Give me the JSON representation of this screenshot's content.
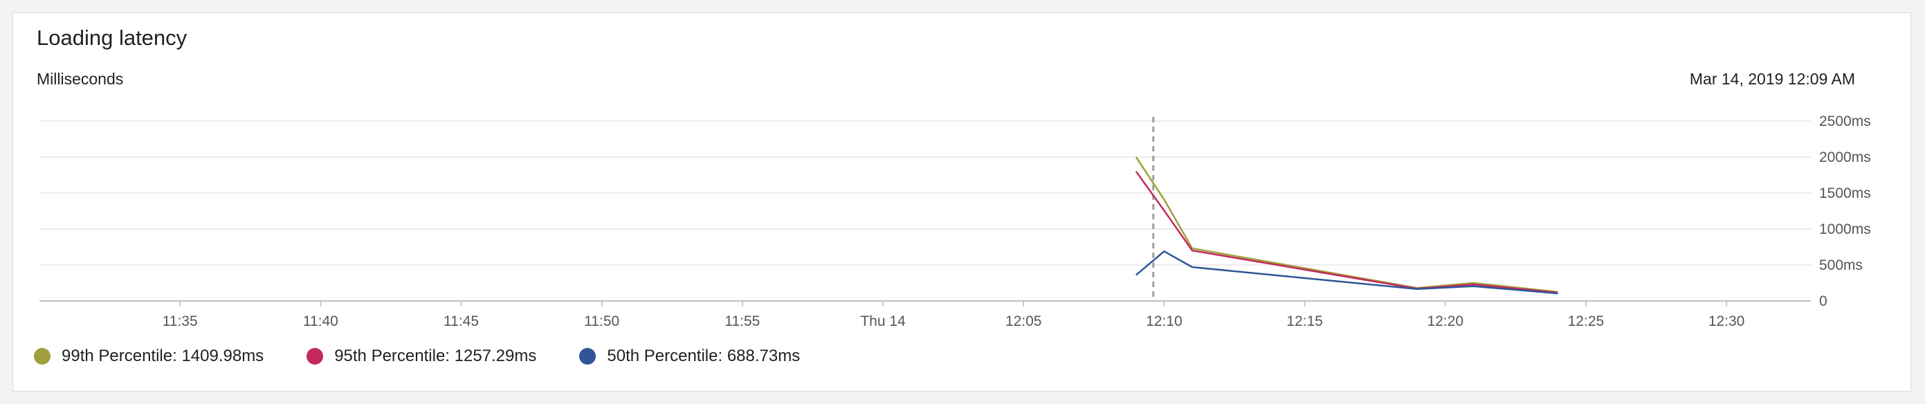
{
  "card": {
    "title": "Loading latency",
    "subtitle": "Milliseconds",
    "timestamp": "Mar 14, 2019 12:09 AM"
  },
  "colors": {
    "p99": "#a0a03c",
    "p95": "#c2295e",
    "p50": "#2f5597",
    "grid": "#e6e6e6",
    "axis": "#bdbdbd",
    "cursor": "#9e9e9e"
  },
  "legend": [
    {
      "label": "99th Percentile: 1409.98ms",
      "color": "#a0a03c"
    },
    {
      "label": "95th Percentile: 1257.29ms",
      "color": "#c2295e"
    },
    {
      "label": "50th Percentile: 688.73ms",
      "color": "#2f5597"
    }
  ],
  "chart_data": {
    "type": "line",
    "title": "Loading latency",
    "ylabel": "Milliseconds",
    "ylim": [
      0,
      2500
    ],
    "y_ticks": [
      0,
      500,
      1000,
      1500,
      2000,
      2500
    ],
    "y_tick_labels": [
      "0",
      "500ms",
      "1000ms",
      "1500ms",
      "2000ms",
      "2500ms"
    ],
    "x_range": [
      "11:30",
      "12:33"
    ],
    "x_ticks": [
      "11:35",
      "11:40",
      "11:45",
      "11:50",
      "11:55",
      "12:00",
      "12:05",
      "12:10",
      "12:15",
      "12:20",
      "12:25",
      "12:30"
    ],
    "x_tick_labels": [
      "11:35",
      "11:40",
      "11:45",
      "11:50",
      "11:55",
      "Thu 14",
      "12:05",
      "12:10",
      "12:15",
      "12:20",
      "12:25",
      "12:30"
    ],
    "cursor_time": "12:09",
    "grid": true,
    "legend_position": "bottom-left",
    "series": [
      {
        "name": "99th Percentile",
        "color": "#a0a03c",
        "x": [
          "12:09",
          "12:10",
          "12:11",
          "12:19",
          "12:21",
          "12:24"
        ],
        "y": [
          2000,
          1410,
          730,
          180,
          250,
          125
        ]
      },
      {
        "name": "95th Percentile",
        "color": "#c2295e",
        "x": [
          "12:09",
          "12:10",
          "12:11",
          "12:19",
          "12:21",
          "12:24"
        ],
        "y": [
          1800,
          1257,
          700,
          170,
          230,
          115
        ]
      },
      {
        "name": "50th Percentile",
        "color": "#2f5597",
        "x": [
          "12:09",
          "12:10",
          "12:11",
          "12:19",
          "12:21",
          "12:24"
        ],
        "y": [
          360,
          689,
          470,
          165,
          205,
          105
        ]
      }
    ]
  }
}
